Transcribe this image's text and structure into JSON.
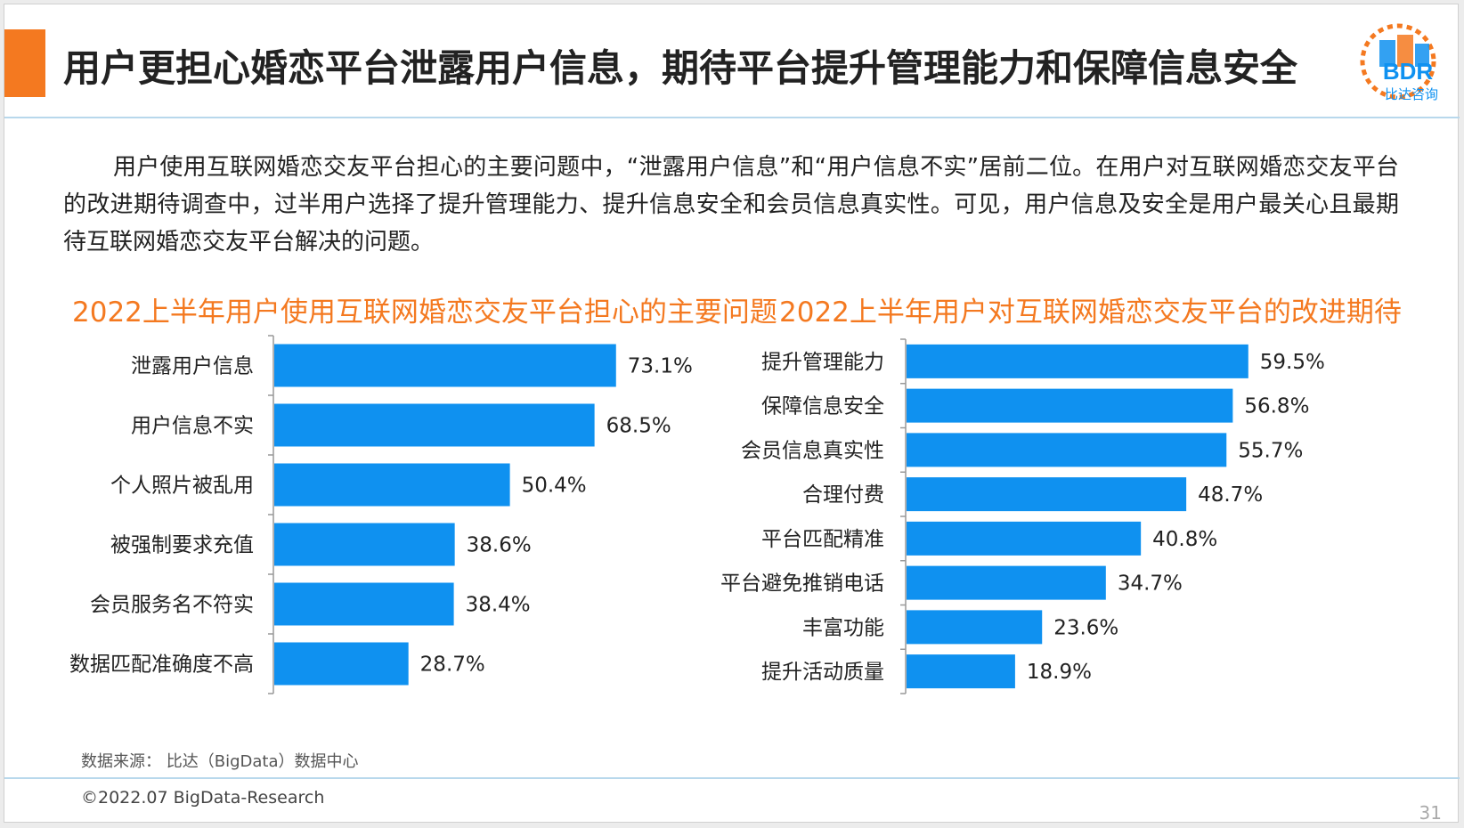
{
  "title": "用户更担心婚恋平台泄露用户信息，期待平台提升管理能力和保障信息安全",
  "logo": {
    "text": "BDR",
    "subtitle": "比达咨询"
  },
  "intro": "用户使用互联网婚恋交友平台担心的主要问题中，“泄露用户信息”和“用户信息不实”居前二位。在用户对互联网婚恋交友平台的改进期待调查中，过半用户选择了提升管理能力、提升信息安全和会员信息真实性。可见，用户信息及安全是用户最关心且最期待互联网婚恋交友平台解决的问题。",
  "source": "数据来源： 比达（BigData）数据中心",
  "copyright": "©2022.07 BigData-Research",
  "page_number": "31",
  "colors": {
    "bar": "#0f91f0",
    "title_accent": "#f47920",
    "axis": "#999999"
  },
  "chart_data": [
    {
      "type": "bar",
      "orientation": "horizontal",
      "title": "2022上半年用户使用互联网婚恋交友平台担心的主要问题",
      "categories": [
        "泄露用户信息",
        "用户信息不实",
        "个人照片被乱用",
        "被强制要求充值",
        "会员服务名不符实",
        "数据匹配准确度不高"
      ],
      "values": [
        73.1,
        68.5,
        50.4,
        38.6,
        38.4,
        28.7
      ],
      "labels": [
        "73.1%",
        "68.5%",
        "50.4%",
        "38.6%",
        "38.4%",
        "28.7%"
      ],
      "unit": "%",
      "xlim": [
        0,
        100
      ],
      "grid": false,
      "legend": "none"
    },
    {
      "type": "bar",
      "orientation": "horizontal",
      "title": "2022上半年用户对互联网婚恋交友平台的改进期待",
      "categories": [
        "提升管理能力",
        "保障信息安全",
        "会员信息真实性",
        "合理付费",
        "平台匹配精准",
        "平台避免推销电话",
        "丰富功能",
        "提升活动质量"
      ],
      "values": [
        59.5,
        56.8,
        55.7,
        48.7,
        40.8,
        34.7,
        23.6,
        18.9
      ],
      "labels": [
        "59.5%",
        "56.8%",
        "55.7%",
        "48.7%",
        "40.8%",
        "34.7%",
        "23.6%",
        "18.9%"
      ],
      "unit": "%",
      "xlim": [
        0,
        100
      ],
      "grid": false,
      "legend": "none"
    }
  ]
}
